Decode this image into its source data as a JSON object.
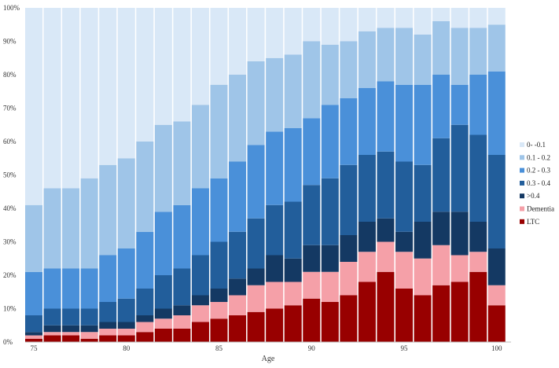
{
  "chart_data": {
    "type": "bar",
    "stacked": true,
    "title": "",
    "xlabel": "Age",
    "ylabel": "",
    "ylim": [
      0,
      100
    ],
    "y_ticks": [
      "0%",
      "10%",
      "20%",
      "30%",
      "40%",
      "50%",
      "60%",
      "70%",
      "80%",
      "90%",
      "100%"
    ],
    "x_ticks": [
      {
        "age": 75,
        "label": "75"
      },
      {
        "age": 80,
        "label": "80"
      },
      {
        "age": 85,
        "label": "85"
      },
      {
        "age": 90,
        "label": "90"
      },
      {
        "age": 95,
        "label": "95"
      },
      {
        "age": 100,
        "label": "100"
      }
    ],
    "grid": false,
    "legend_position": "right",
    "categories": [
      75,
      76,
      77,
      78,
      79,
      80,
      81,
      82,
      83,
      84,
      85,
      86,
      87,
      88,
      89,
      90,
      91,
      92,
      93,
      94,
      95,
      96,
      97,
      98,
      99,
      100
    ],
    "series": [
      {
        "name": "LTC",
        "color": "#980000",
        "values": [
          1,
          2,
          2,
          1,
          2,
          2,
          3,
          4,
          4,
          6,
          7,
          8,
          9,
          10,
          11,
          13,
          12,
          14,
          18,
          21,
          16,
          14,
          17,
          18,
          21,
          11
        ]
      },
      {
        "name": "Dementia",
        "color": "#f5a0a8",
        "values": [
          1,
          1,
          1,
          2,
          2,
          2,
          3,
          3,
          4,
          5,
          5,
          6,
          8,
          8,
          7,
          8,
          9,
          10,
          9,
          9,
          11,
          11,
          12,
          8,
          6,
          6
        ]
      },
      {
        "name": ">0.4",
        "color": "#143963",
        "values": [
          1,
          2,
          2,
          2,
          2,
          2,
          2,
          3,
          3,
          3,
          4,
          5,
          5,
          8,
          7,
          8,
          8,
          8,
          9,
          7,
          6,
          11,
          10,
          13,
          9,
          11
        ]
      },
      {
        "name": "0.3 - 0.4",
        "color": "#225e9b",
        "values": [
          5,
          5,
          5,
          5,
          6,
          7,
          8,
          10,
          11,
          12,
          14,
          14,
          15,
          15,
          17,
          18,
          20,
          21,
          20,
          20,
          21,
          17,
          22,
          26,
          26,
          28
        ]
      },
      {
        "name": "0.2 - 0.3",
        "color": "#4a90d9",
        "values": [
          13,
          12,
          12,
          12,
          14,
          15,
          17,
          19,
          19,
          20,
          19,
          21,
          22,
          22,
          22,
          20,
          22,
          20,
          20,
          21,
          23,
          24,
          19,
          12,
          18,
          25
        ]
      },
      {
        "name": "0.1 - 0.2",
        "color": "#9fc5e8",
        "values": [
          20,
          24,
          24,
          27,
          27,
          27,
          27,
          26,
          25,
          25,
          28,
          26,
          25,
          22,
          22,
          23,
          18,
          17,
          17,
          16,
          17,
          15,
          16,
          17,
          14,
          14
        ]
      },
      {
        "name": "0- -0.1",
        "color": "#d9e8f7",
        "values": [
          59,
          54,
          54,
          51,
          47,
          45,
          40,
          35,
          34,
          29,
          23,
          20,
          16,
          15,
          14,
          10,
          11,
          10,
          7,
          6,
          6,
          8,
          4,
          6,
          6,
          5
        ]
      }
    ]
  }
}
